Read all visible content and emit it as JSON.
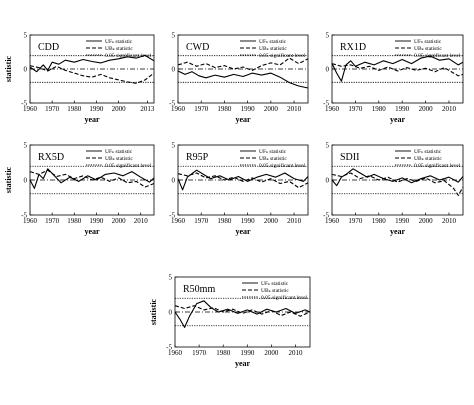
{
  "figure": {
    "ylabel": "statistic",
    "xlabel": "year",
    "legend": [
      "UFₖ statistic",
      "UBₖ statistic",
      "0.05 significant level"
    ]
  },
  "chart_data": [
    {
      "type": "line",
      "title": "CDD",
      "xlabel": "year",
      "ylabel": "statistic",
      "xlim": [
        1960,
        2016
      ],
      "ylim": [
        -5,
        5
      ],
      "xticks": [
        "1960",
        "1970",
        "1980",
        "1990",
        "2000",
        "2013"
      ],
      "yticks": [
        "-5",
        "0",
        "5"
      ],
      "legend_position": "top-right",
      "grid": false,
      "series": [
        {
          "name": "UFₖ statistic",
          "x": [
            1960,
            1963,
            1966,
            1968,
            1970,
            1973,
            1976,
            1980,
            1984,
            1988,
            1992,
            1996,
            2000,
            2004,
            2008,
            2012,
            2016
          ],
          "values": [
            0.3,
            -0.4,
            0.6,
            -0.2,
            1.0,
            0.7,
            1.3,
            1.0,
            1.4,
            1.1,
            0.9,
            1.3,
            1.5,
            1.8,
            1.6,
            2.0,
            1.2
          ]
        },
        {
          "name": "UBₖ statistic",
          "x": [
            1960,
            1964,
            1968,
            1972,
            1976,
            1980,
            1984,
            1988,
            1992,
            1996,
            2000,
            2004,
            2008,
            2012,
            2016
          ],
          "values": [
            0.5,
            0.2,
            -0.3,
            0.4,
            -0.2,
            -0.6,
            -1.0,
            -1.2,
            -0.8,
            -1.3,
            -1.6,
            -1.9,
            -2.1,
            -1.6,
            -0.6
          ]
        },
        {
          "name": "0.05 significant level",
          "values": [
            1.96,
            -1.96
          ]
        }
      ]
    },
    {
      "type": "line",
      "title": "CWD",
      "xlabel": "year",
      "ylabel": "",
      "xlim": [
        1960,
        2016
      ],
      "ylim": [
        -5,
        5
      ],
      "xticks": [
        "1960",
        "1970",
        "1980",
        "1990",
        "2000",
        "2010"
      ],
      "yticks": [
        "-5",
        "0",
        "5"
      ],
      "legend_position": "top-right",
      "grid": false,
      "series": [
        {
          "name": "UFₖ statistic",
          "x": [
            1960,
            1963,
            1966,
            1969,
            1972,
            1976,
            1980,
            1984,
            1988,
            1992,
            1996,
            2000,
            2004,
            2008,
            2012,
            2016
          ],
          "values": [
            -0.3,
            -0.8,
            -0.4,
            -1.0,
            -1.3,
            -0.9,
            -1.2,
            -0.8,
            -1.1,
            -0.6,
            -0.9,
            -0.6,
            -1.2,
            -2.0,
            -2.5,
            -2.8
          ]
        },
        {
          "name": "UBₖ statistic",
          "x": [
            1960,
            1964,
            1968,
            1972,
            1976,
            1980,
            1984,
            1988,
            1992,
            1996,
            2000,
            2004,
            2008,
            2012,
            2016
          ],
          "values": [
            0.6,
            1.0,
            0.4,
            0.8,
            0.2,
            0.5,
            0.0,
            0.3,
            -0.2,
            0.5,
            0.9,
            0.6,
            1.6,
            0.8,
            1.5
          ]
        },
        {
          "name": "0.05 significant level",
          "values": [
            1.96,
            -1.96
          ]
        }
      ]
    },
    {
      "type": "line",
      "title": "RX1D",
      "xlabel": "year",
      "ylabel": "",
      "xlim": [
        1960,
        2016
      ],
      "ylim": [
        -5,
        5
      ],
      "xticks": [
        "1960",
        "1970",
        "1980",
        "1990",
        "2000",
        "2010"
      ],
      "yticks": [
        "-5",
        "0",
        "5"
      ],
      "legend_position": "top-right",
      "grid": false,
      "series": [
        {
          "name": "UFₖ statistic",
          "x": [
            1960,
            1962,
            1964,
            1966,
            1968,
            1970,
            1974,
            1978,
            1982,
            1986,
            1990,
            1994,
            1998,
            2002,
            2006,
            2010,
            2014,
            2016
          ],
          "values": [
            0.8,
            -0.6,
            -1.8,
            0.6,
            1.2,
            0.4,
            1.0,
            0.6,
            1.2,
            0.8,
            1.4,
            0.8,
            1.6,
            1.9,
            1.3,
            1.5,
            0.6,
            1.0
          ]
        },
        {
          "name": "UBₖ statistic",
          "x": [
            1960,
            1964,
            1968,
            1972,
            1976,
            1980,
            1984,
            1988,
            1992,
            1996,
            2000,
            2004,
            2008,
            2012,
            2014,
            2016
          ],
          "values": [
            0.8,
            0.4,
            0.6,
            0.1,
            0.4,
            -0.2,
            0.3,
            -0.3,
            0.2,
            -0.2,
            0.1,
            -0.4,
            0.2,
            -0.6,
            -1.0,
            -0.8
          ]
        },
        {
          "name": "0.05 significant level",
          "values": [
            1.96,
            -1.96
          ]
        }
      ]
    },
    {
      "type": "line",
      "title": "RX5D",
      "xlabel": "year",
      "ylabel": "statistic",
      "xlim": [
        1960,
        2016
      ],
      "ylim": [
        -5,
        5
      ],
      "xticks": [
        "1960",
        "1970",
        "1980",
        "1990",
        "2000",
        "2010"
      ],
      "yticks": [
        "-5",
        "0",
        "5"
      ],
      "legend_position": "top-right",
      "grid": false,
      "series": [
        {
          "name": "UFₖ statistic",
          "x": [
            1960,
            1962,
            1964,
            1966,
            1968,
            1971,
            1974,
            1978,
            1982,
            1986,
            1990,
            1994,
            1998,
            2002,
            2006,
            2010,
            2014,
            2016
          ],
          "values": [
            0.0,
            -1.2,
            0.8,
            0.2,
            1.6,
            0.6,
            -0.4,
            0.4,
            -0.2,
            0.6,
            0.0,
            0.8,
            1.0,
            0.6,
            1.2,
            0.4,
            -0.3,
            0.3
          ]
        },
        {
          "name": "UBₖ statistic",
          "x": [
            1960,
            1964,
            1968,
            1972,
            1976,
            1980,
            1984,
            1988,
            1992,
            1996,
            2000,
            2004,
            2008,
            2012,
            2016
          ],
          "values": [
            1.2,
            0.8,
            1.4,
            0.5,
            0.8,
            0.2,
            0.6,
            0.0,
            0.4,
            -0.2,
            0.3,
            -0.4,
            -0.2,
            -1.0,
            -0.5
          ]
        },
        {
          "name": "0.05 significant level",
          "values": [
            1.96,
            -1.96
          ]
        }
      ]
    },
    {
      "type": "line",
      "title": "R95P",
      "xlabel": "year",
      "ylabel": "",
      "xlim": [
        1960,
        2016
      ],
      "ylim": [
        -5,
        5
      ],
      "xticks": [
        "1960",
        "1970",
        "1980",
        "1990",
        "2000",
        "2010"
      ],
      "yticks": [
        "-5",
        "0",
        "5"
      ],
      "legend_position": "top-right",
      "grid": false,
      "series": [
        {
          "name": "UFₖ statistic",
          "x": [
            1960,
            1962,
            1964,
            1966,
            1968,
            1971,
            1974,
            1978,
            1982,
            1986,
            1990,
            1994,
            1998,
            2002,
            2006,
            2010,
            2014,
            2016
          ],
          "values": [
            0.2,
            -1.4,
            0.4,
            0.9,
            1.4,
            0.8,
            0.2,
            0.6,
            0.0,
            0.5,
            -0.2,
            0.4,
            0.8,
            0.4,
            1.0,
            0.2,
            -0.2,
            0.5
          ]
        },
        {
          "name": "UBₖ statistic",
          "x": [
            1960,
            1964,
            1968,
            1972,
            1976,
            1980,
            1984,
            1988,
            1992,
            1996,
            2000,
            2004,
            2008,
            2012,
            2016
          ],
          "values": [
            0.9,
            0.6,
            1.0,
            0.3,
            0.6,
            0.0,
            0.4,
            -0.2,
            0.3,
            -0.3,
            0.2,
            -0.5,
            -0.2,
            -1.1,
            -0.4
          ]
        },
        {
          "name": "0.05 significant level",
          "values": [
            1.96,
            -1.96
          ]
        }
      ]
    },
    {
      "type": "line",
      "title": "SDII",
      "xlabel": "year",
      "ylabel": "",
      "xlim": [
        1960,
        2016
      ],
      "ylim": [
        -5,
        5
      ],
      "xticks": [
        "1960",
        "1970",
        "1980",
        "1990",
        "2000",
        "2010"
      ],
      "yticks": [
        "-5",
        "0",
        "5"
      ],
      "legend_position": "top-right",
      "grid": false,
      "series": [
        {
          "name": "UFₖ statistic",
          "x": [
            1960,
            1962,
            1964,
            1966,
            1969,
            1972,
            1975,
            1978,
            1982,
            1986,
            1990,
            1994,
            1998,
            2002,
            2006,
            2010,
            2014,
            2016
          ],
          "values": [
            0.0,
            -0.8,
            0.4,
            0.8,
            1.6,
            1.0,
            0.4,
            0.8,
            0.2,
            -0.2,
            0.3,
            -0.4,
            0.2,
            0.6,
            0.0,
            0.4,
            -0.3,
            0.5
          ]
        },
        {
          "name": "UBₖ statistic",
          "x": [
            1960,
            1964,
            1968,
            1972,
            1976,
            1980,
            1984,
            1988,
            1992,
            1996,
            2000,
            2004,
            2008,
            2012,
            2014,
            2016
          ],
          "values": [
            0.8,
            0.5,
            1.0,
            0.2,
            0.6,
            0.0,
            0.4,
            -0.3,
            0.2,
            -0.2,
            0.3,
            -0.4,
            -0.1,
            -1.2,
            -2.2,
            -1.0
          ]
        },
        {
          "name": "0.05 significant level",
          "values": [
            1.96,
            -1.96
          ]
        }
      ]
    },
    {
      "type": "line",
      "title": "R50mm",
      "xlabel": "year",
      "ylabel": "statistic",
      "xlim": [
        1960,
        2016
      ],
      "ylim": [
        -5,
        5
      ],
      "xticks": [
        "1960",
        "1970",
        "1980",
        "1990",
        "2000",
        "2010"
      ],
      "yticks": [
        "-5",
        "0",
        "5"
      ],
      "legend_position": "top-right",
      "grid": false,
      "series": [
        {
          "name": "UFₖ statistic",
          "x": [
            1960,
            1962,
            1964,
            1966,
            1969,
            1972,
            1975,
            1978,
            1982,
            1986,
            1990,
            1994,
            1998,
            2002,
            2006,
            2010,
            2014,
            2016
          ],
          "values": [
            0.0,
            -1.0,
            -2.2,
            -0.6,
            1.2,
            1.6,
            0.6,
            0.0,
            0.4,
            -0.2,
            0.3,
            -0.3,
            0.4,
            0.0,
            0.5,
            -0.2,
            0.3,
            0.0
          ]
        },
        {
          "name": "UBₖ statistic",
          "x": [
            1960,
            1964,
            1968,
            1972,
            1976,
            1980,
            1984,
            1988,
            1992,
            1996,
            2000,
            2004,
            2008,
            2012,
            2016
          ],
          "values": [
            0.9,
            0.5,
            0.9,
            0.3,
            0.6,
            0.0,
            0.4,
            -0.2,
            0.3,
            -0.3,
            0.2,
            -0.5,
            0.0,
            -0.6,
            0.0
          ]
        },
        {
          "name": "0.05 significant level",
          "values": [
            1.96,
            -1.96
          ]
        }
      ]
    }
  ]
}
